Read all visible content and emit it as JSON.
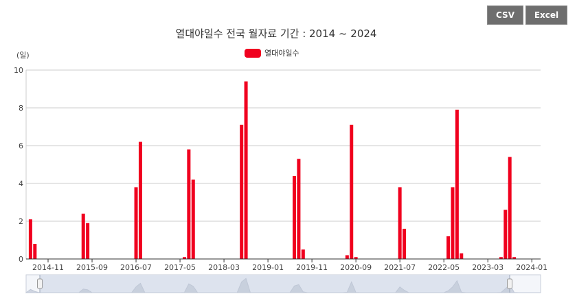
{
  "toolbar": {
    "csv_label": "CSV",
    "excel_label": "Excel"
  },
  "colors": {
    "bar": "#f0001e",
    "grid": "#cccccc",
    "navigator_fill": "#dde3ee",
    "navigator_line": "#bfc7d6"
  },
  "chart_data": {
    "type": "bar",
    "title": "열대야일수 전국 월자료 기간 : 2014 ~ 2024",
    "ylabel": "(일)",
    "xlabel": "",
    "ylim": [
      0,
      10
    ],
    "yticks": [
      0,
      2,
      4,
      6,
      8,
      10
    ],
    "grid": true,
    "legend_position": "top-center",
    "xticks": [
      "2014-11",
      "2015-09",
      "2016-07",
      "2017-05",
      "2018-03",
      "2019-01",
      "2019-11",
      "2020-09",
      "2021-07",
      "2022-05",
      "2023-03",
      "2024-01"
    ],
    "series": [
      {
        "name": "열대야일수",
        "points": [
          {
            "x": "2014-07",
            "y": 2.1
          },
          {
            "x": "2014-08",
            "y": 0.8
          },
          {
            "x": "2015-07",
            "y": 2.4
          },
          {
            "x": "2015-08",
            "y": 1.9
          },
          {
            "x": "2016-07",
            "y": 3.8
          },
          {
            "x": "2016-08",
            "y": 6.2
          },
          {
            "x": "2017-06",
            "y": 0.1
          },
          {
            "x": "2017-07",
            "y": 5.8
          },
          {
            "x": "2017-08",
            "y": 4.2
          },
          {
            "x": "2018-07",
            "y": 7.1
          },
          {
            "x": "2018-08",
            "y": 9.4
          },
          {
            "x": "2019-07",
            "y": 4.4
          },
          {
            "x": "2019-08",
            "y": 5.3
          },
          {
            "x": "2019-09",
            "y": 0.5
          },
          {
            "x": "2020-07",
            "y": 0.2
          },
          {
            "x": "2020-08",
            "y": 7.1
          },
          {
            "x": "2020-09",
            "y": 0.1
          },
          {
            "x": "2021-07",
            "y": 3.8
          },
          {
            "x": "2021-08",
            "y": 1.6
          },
          {
            "x": "2022-06",
            "y": 1.2
          },
          {
            "x": "2022-07",
            "y": 3.8
          },
          {
            "x": "2022-08",
            "y": 7.9
          },
          {
            "x": "2022-09",
            "y": 0.3
          },
          {
            "x": "2023-06",
            "y": 0.1
          },
          {
            "x": "2023-07",
            "y": 2.6
          },
          {
            "x": "2023-08",
            "y": 5.4
          },
          {
            "x": "2023-09",
            "y": 0.1
          }
        ]
      }
    ]
  }
}
